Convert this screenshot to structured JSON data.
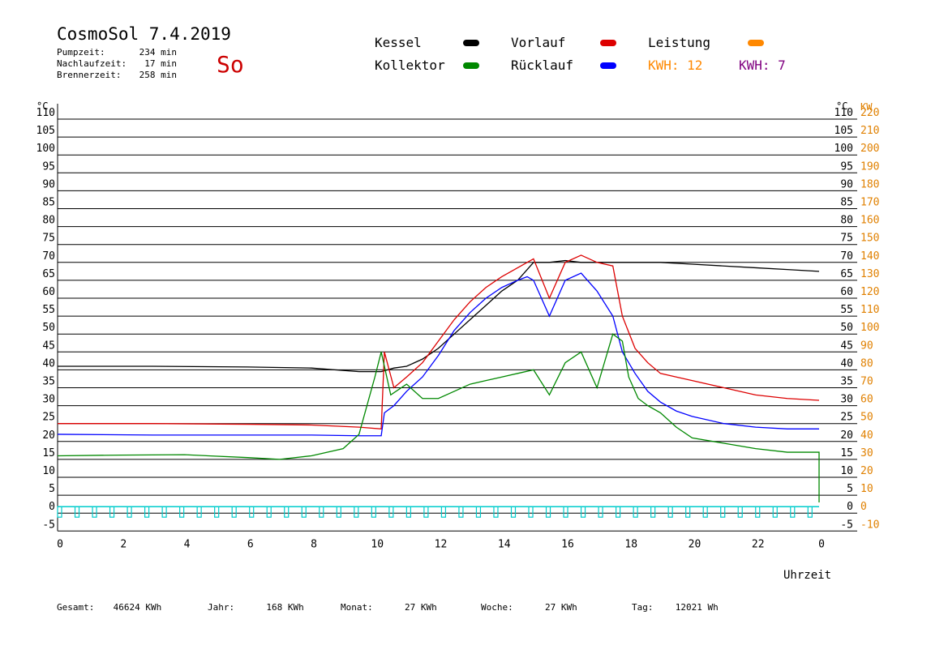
{
  "header": {
    "title": "CosmoSol 7.4.2019",
    "day": "So",
    "stats": [
      {
        "label": "Pumpzeit:",
        "value": "234 min"
      },
      {
        "label": "Nachlaufzeit:",
        "value": "17 min"
      },
      {
        "label": "Brennerzeit:",
        "value": "258 min"
      }
    ]
  },
  "legend": {
    "kessel": {
      "label": "Kessel",
      "color": "#000000"
    },
    "vorlauf": {
      "label": "Vorlauf",
      "color": "#dd0000"
    },
    "leistung": {
      "label": "Leistung",
      "color": "#ff8800"
    },
    "kollektor": {
      "label": "Kollektor",
      "color": "#008800"
    },
    "ruecklauf": {
      "label": "Rücklauf",
      "color": "#0000ff"
    },
    "kwh1": {
      "label": "KWH: 12",
      "color": "#ff8800"
    },
    "kwh2": {
      "label": "KWH: 7",
      "color": "#800080"
    }
  },
  "footer": [
    {
      "label": "Gesamt:",
      "value": "46624 KWh"
    },
    {
      "label": "Jahr:",
      "value": "168 KWh"
    },
    {
      "label": "Monat:",
      "value": "27 KWh"
    },
    {
      "label": "Woche:",
      "value": "27 KWh"
    },
    {
      "label": "Tag:",
      "value": "12021 Wh"
    }
  ],
  "chart_data": {
    "type": "line",
    "xlabel": "Uhrzeit",
    "ylabel": "°C",
    "y2label": "KW",
    "xlim": [
      0,
      24
    ],
    "ylim": [
      -5,
      110
    ],
    "x_ticks": [
      "0",
      "2",
      "4",
      "6",
      "8",
      "10",
      "12",
      "14",
      "16",
      "18",
      "20",
      "22",
      "0"
    ],
    "y_ticks": [
      "110",
      "105",
      "100",
      "95",
      "90",
      "85",
      "80",
      "75",
      "70",
      "65",
      "60",
      "55",
      "50",
      "45",
      "40",
      "35",
      "30",
      "25",
      "20",
      "15",
      "10",
      "5",
      "0",
      "-5"
    ],
    "y2_ticks": [
      "220",
      "210",
      "200",
      "190",
      "180",
      "170",
      "160",
      "150",
      "140",
      "130",
      "120",
      "110",
      "100",
      "90",
      "80",
      "70",
      "60",
      "50",
      "40",
      "30",
      "20",
      "10",
      "0",
      "-10"
    ],
    "grid": true,
    "series": [
      {
        "name": "Kessel",
        "color": "#000000",
        "x": [
          0,
          3,
          6,
          8,
          9.5,
          10.2,
          10.6,
          11,
          11.5,
          12,
          12.5,
          13,
          13.5,
          14,
          14.5,
          14.8,
          15,
          15.5,
          16,
          16.5,
          17,
          17.5,
          18,
          19,
          20,
          21,
          22,
          23,
          24
        ],
        "y": [
          41,
          41,
          40.8,
          40.5,
          39.5,
          39.5,
          40.5,
          41,
          43,
          46,
          50,
          54,
          58,
          62,
          65,
          68,
          70,
          70,
          70.5,
          70,
          70,
          70,
          70,
          70,
          69.5,
          69,
          68.5,
          68,
          67.5
        ]
      },
      {
        "name": "Vorlauf",
        "color": "#dd0000",
        "x": [
          0,
          3,
          6,
          8,
          9.5,
          10.2,
          10.3,
          10.6,
          11,
          11.5,
          12,
          12.5,
          13,
          13.5,
          14,
          14.5,
          14.8,
          15,
          15.5,
          16,
          16.5,
          17,
          17.5,
          17.8,
          18.2,
          18.6,
          19,
          19.5,
          20,
          21,
          22,
          23,
          24
        ],
        "y": [
          25,
          25,
          24.8,
          24.6,
          24,
          23.5,
          45,
          35,
          38,
          42,
          48,
          54,
          59,
          63,
          66,
          68.5,
          70,
          71,
          60,
          70,
          72,
          70,
          69,
          55,
          46,
          42,
          39,
          38,
          37,
          35,
          33,
          32,
          31.5
        ]
      },
      {
        "name": "Rücklauf",
        "color": "#0000ff",
        "x": [
          0,
          3,
          6,
          8,
          9.5,
          10.2,
          10.3,
          10.6,
          11,
          11.5,
          12,
          12.5,
          13,
          13.5,
          14,
          14.5,
          14.8,
          15,
          15.5,
          16,
          16.5,
          17,
          17.5,
          17.8,
          18.2,
          18.6,
          19,
          19.5,
          20,
          21,
          22,
          23,
          24
        ],
        "y": [
          22,
          21.8,
          21.8,
          21.8,
          21.6,
          21.6,
          28,
          30,
          34,
          38,
          44,
          51,
          56,
          60,
          63,
          65,
          66,
          65,
          55,
          65,
          67,
          62,
          55,
          45,
          39,
          34,
          31,
          28.5,
          27,
          25,
          24,
          23.5,
          23.5
        ]
      },
      {
        "name": "Kollektor",
        "color": "#008800",
        "x": [
          0,
          2,
          4,
          6,
          7,
          8,
          9,
          9.5,
          10,
          10.2,
          10.5,
          11,
          11.5,
          12,
          12.5,
          13,
          13.5,
          14,
          14.5,
          15,
          15.5,
          16,
          16.5,
          17,
          17.5,
          17.8,
          18,
          18.3,
          18.6,
          19,
          19.5,
          20,
          21,
          22,
          23,
          24,
          24.05
        ],
        "y": [
          16,
          16.2,
          16.3,
          15.5,
          15,
          16,
          18,
          22,
          38,
          45,
          33,
          36,
          32,
          32,
          34,
          36,
          37,
          38,
          39,
          40,
          33,
          42,
          45,
          35,
          50,
          48,
          38,
          32,
          30,
          28,
          24,
          21,
          19.5,
          18,
          17,
          17,
          3
        ]
      }
    ]
  }
}
